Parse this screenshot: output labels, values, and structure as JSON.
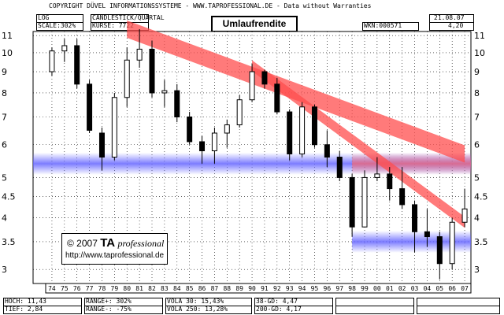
{
  "header": {
    "copyright": "COPYRIGHT DÜVEL INFORMATIONSSYSTEME - WWW.TAPROFESSIONAL.DE - Data without Warranties",
    "scale_type": "LOG",
    "scale": "SCALE:302%",
    "chart_kind": "CANDLESTICK/QUARTAL",
    "kurse": "KURSE: 7722",
    "title": "Umlaufrendite",
    "wkn": "WKN:000571",
    "date": "21.08.07",
    "last": "4,20"
  },
  "logo": {
    "copy": "© 2007",
    "brand_bold": "TA",
    "brand_italic": "professional",
    "url": "http://www.taprofessional.de"
  },
  "footer": {
    "hoch": "HOCH: 11,43",
    "tief": "TIEF: 2,84",
    "range_plus": "RANGE+: 302%",
    "range_minus": "RANGE-: -75%",
    "vola30": "VOLA 30: 15,43%",
    "vola250": "VOLA 250: 13,28%",
    "gd38": "38-GD: 4,47",
    "gd200": "200-GD: 4,17"
  },
  "colors": {
    "band_red": "#ff6666",
    "band_blue": "#6666ff",
    "grid": "#000000"
  },
  "chart_data": {
    "type": "candlestick",
    "title": "Umlaufrendite",
    "scale": "log",
    "ylim": [
      2.8,
      11.5
    ],
    "y_ticks": [
      "11",
      "10",
      "9",
      "8",
      "7",
      "6",
      "5",
      "4.5",
      "4",
      "3.5",
      "3"
    ],
    "x_ticks": [
      "74",
      "75",
      "76",
      "77",
      "78",
      "79",
      "80",
      "81",
      "82",
      "83",
      "84",
      "85",
      "86",
      "87",
      "88",
      "89",
      "90",
      "91",
      "92",
      "93",
      "94",
      "95",
      "96",
      "97",
      "98",
      "99",
      "00",
      "01",
      "02",
      "03",
      "04",
      "05",
      "06",
      "07"
    ],
    "grid": true,
    "support_bands": [
      {
        "level": 5.4,
        "color": "blue"
      },
      {
        "level": 3.5,
        "color": "blue"
      }
    ],
    "trend_channels": [
      {
        "from": {
          "x": "80",
          "y": 11.4
        },
        "to": {
          "x": "07",
          "y": 5.7
        },
        "color": "red"
      },
      {
        "from": {
          "x": "90",
          "y": 9.3
        },
        "to": {
          "x": "07",
          "y": 3.9
        },
        "color": "red"
      }
    ],
    "candles": [
      {
        "x": "74",
        "o": 9.0,
        "h": 10.3,
        "l": 8.8,
        "c": 10.1
      },
      {
        "x": "75",
        "o": 10.1,
        "h": 10.8,
        "l": 9.5,
        "c": 10.4
      },
      {
        "x": "76",
        "o": 10.4,
        "h": 10.8,
        "l": 8.2,
        "c": 8.4
      },
      {
        "x": "77",
        "o": 8.4,
        "h": 8.6,
        "l": 6.4,
        "c": 6.5
      },
      {
        "x": "78",
        "o": 6.4,
        "h": 6.6,
        "l": 5.2,
        "c": 5.6
      },
      {
        "x": "79",
        "o": 5.6,
        "h": 8.0,
        "l": 5.5,
        "c": 7.8
      },
      {
        "x": "80",
        "o": 7.8,
        "h": 10.3,
        "l": 7.4,
        "c": 9.6
      },
      {
        "x": "81",
        "o": 9.6,
        "h": 11.4,
        "l": 9.2,
        "c": 10.2
      },
      {
        "x": "82",
        "o": 10.2,
        "h": 10.7,
        "l": 7.8,
        "c": 8.0
      },
      {
        "x": "83",
        "o": 8.0,
        "h": 8.6,
        "l": 7.4,
        "c": 8.1
      },
      {
        "x": "84",
        "o": 8.1,
        "h": 8.4,
        "l": 6.8,
        "c": 7.0
      },
      {
        "x": "85",
        "o": 7.0,
        "h": 7.2,
        "l": 6.0,
        "c": 6.1
      },
      {
        "x": "86",
        "o": 6.1,
        "h": 6.3,
        "l": 5.4,
        "c": 5.8
      },
      {
        "x": "87",
        "o": 5.8,
        "h": 6.6,
        "l": 5.4,
        "c": 6.4
      },
      {
        "x": "88",
        "o": 6.4,
        "h": 6.9,
        "l": 5.9,
        "c": 6.7
      },
      {
        "x": "89",
        "o": 6.7,
        "h": 7.9,
        "l": 6.6,
        "c": 7.7
      },
      {
        "x": "90",
        "o": 7.7,
        "h": 9.4,
        "l": 7.6,
        "c": 9.0
      },
      {
        "x": "91",
        "o": 9.0,
        "h": 9.1,
        "l": 8.2,
        "c": 8.4
      },
      {
        "x": "92",
        "o": 8.4,
        "h": 8.7,
        "l": 7.1,
        "c": 7.2
      },
      {
        "x": "93",
        "o": 7.2,
        "h": 7.3,
        "l": 5.5,
        "c": 5.7
      },
      {
        "x": "94",
        "o": 5.7,
        "h": 7.6,
        "l": 5.6,
        "c": 7.4
      },
      {
        "x": "95",
        "o": 7.4,
        "h": 7.5,
        "l": 5.9,
        "c": 6.0
      },
      {
        "x": "96",
        "o": 6.0,
        "h": 6.5,
        "l": 5.3,
        "c": 5.6
      },
      {
        "x": "97",
        "o": 5.6,
        "h": 5.8,
        "l": 4.9,
        "c": 5.0
      },
      {
        "x": "98",
        "o": 5.0,
        "h": 5.1,
        "l": 3.6,
        "c": 3.8
      },
      {
        "x": "99",
        "o": 3.8,
        "h": 5.2,
        "l": 3.8,
        "c": 5.0
      },
      {
        "x": "00",
        "o": 5.0,
        "h": 5.6,
        "l": 4.9,
        "c": 5.1
      },
      {
        "x": "01",
        "o": 5.1,
        "h": 5.3,
        "l": 4.4,
        "c": 4.7
      },
      {
        "x": "02",
        "o": 4.7,
        "h": 5.3,
        "l": 4.2,
        "c": 4.3
      },
      {
        "x": "03",
        "o": 4.3,
        "h": 4.4,
        "l": 3.3,
        "c": 3.7
      },
      {
        "x": "04",
        "o": 3.7,
        "h": 4.2,
        "l": 3.4,
        "c": 3.6
      },
      {
        "x": "05",
        "o": 3.6,
        "h": 3.7,
        "l": 2.84,
        "c": 3.1
      },
      {
        "x": "06",
        "o": 3.1,
        "h": 4.0,
        "l": 3.0,
        "c": 3.9
      },
      {
        "x": "07",
        "o": 3.9,
        "h": 4.7,
        "l": 3.8,
        "c": 4.2
      }
    ]
  }
}
